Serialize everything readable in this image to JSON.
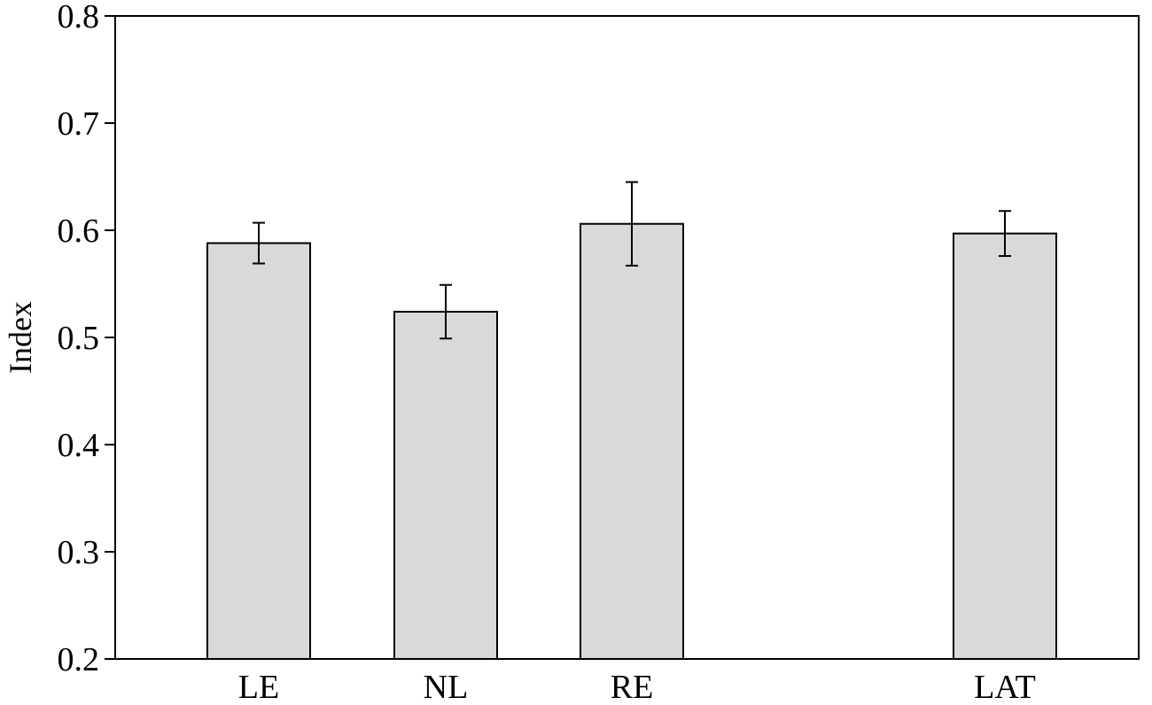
{
  "chart_data": {
    "type": "bar",
    "title": "",
    "xlabel": "",
    "ylabel": "Index",
    "ylim": [
      0.2,
      0.8
    ],
    "yticks": [
      0.2,
      0.3,
      0.4,
      0.5,
      0.6,
      0.7,
      0.8
    ],
    "ytick_labels": [
      "0.2",
      "0.3",
      "0.4",
      "0.5",
      "0.6",
      "0.7",
      "0.8"
    ],
    "categories": [
      "LE",
      "NL",
      "RE",
      "LAT"
    ],
    "values": [
      0.588,
      0.524,
      0.606,
      0.597
    ],
    "error_low": [
      0.569,
      0.499,
      0.567,
      0.576
    ],
    "error_high": [
      0.607,
      0.549,
      0.645,
      0.618
    ],
    "grid": false,
    "legend": "none",
    "colors": {
      "bar_fill": "#d9d9d9",
      "bar_stroke": "#000000",
      "axis": "#000000"
    }
  }
}
